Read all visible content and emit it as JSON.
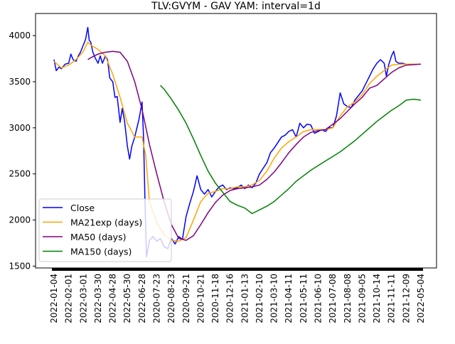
{
  "chart_data": {
    "type": "line",
    "title": "TLV:GVYM - GAV YAM: interval=1d",
    "xlabel": "",
    "ylabel": "",
    "ylim": [
      1480,
      4240
    ],
    "yticks": [
      1500,
      2000,
      2500,
      3000,
      3500,
      4000
    ],
    "xtick_labels": [
      "2022-01-04",
      "2022-02-01",
      "2022-03-01",
      "2022-03-30",
      "2022-04-28",
      "2022-05-30",
      "2022-06-28",
      "2020-07-23",
      "2020-08-23",
      "2020-09-21",
      "2020-10-21",
      "2020-11-18",
      "2020-12-16",
      "2021-01-13",
      "2021-02-10",
      "2021-03-10",
      "2021-04-11",
      "2021-05-11",
      "2021-06-10",
      "2021-07-08",
      "2021-08-08",
      "2021-09-05",
      "2021-10-14",
      "2021-11-11",
      "2021-12-09",
      "2022-05-04"
    ],
    "legend": {
      "position": "lower-left"
    },
    "grid": false,
    "series": [
      {
        "name": "Close",
        "color": "#0000ff",
        "points": [
          [
            0,
            3740
          ],
          [
            0.3,
            3620
          ],
          [
            0.7,
            3660
          ],
          [
            1,
            3640
          ],
          [
            1.5,
            3690
          ],
          [
            2,
            3700
          ],
          [
            2.3,
            3800
          ],
          [
            2.6,
            3740
          ],
          [
            3,
            3720
          ],
          [
            3.3,
            3780
          ],
          [
            3.6,
            3820
          ],
          [
            4,
            3900
          ],
          [
            4.3,
            3960
          ],
          [
            4.6,
            4090
          ],
          [
            4.8,
            3950
          ],
          [
            5,
            3930
          ],
          [
            5.3,
            3820
          ],
          [
            5.6,
            3760
          ],
          [
            6,
            3700
          ],
          [
            6.3,
            3780
          ],
          [
            6.6,
            3700
          ],
          [
            7,
            3780
          ],
          [
            7.3,
            3740
          ],
          [
            7.6,
            3540
          ],
          [
            8,
            3500
          ],
          [
            8.3,
            3330
          ],
          [
            8.6,
            3340
          ],
          [
            9,
            3060
          ],
          [
            9.3,
            3210
          ],
          [
            9.6,
            3080
          ],
          [
            10,
            2800
          ],
          [
            10.3,
            2660
          ],
          [
            10.6,
            2800
          ],
          [
            11,
            2900
          ],
          [
            11.3,
            3000
          ],
          [
            11.6,
            3100
          ],
          [
            12,
            3280
          ],
          [
            12.2,
            2900
          ],
          [
            12.4,
            2180
          ],
          [
            12.6,
            1600
          ],
          [
            13,
            1780
          ],
          [
            13.5,
            1820
          ],
          [
            14,
            1770
          ],
          [
            14.5,
            1800
          ],
          [
            15,
            1710
          ],
          [
            15.5,
            1690
          ],
          [
            16,
            1800
          ],
          [
            16.5,
            1740
          ],
          [
            17,
            1820
          ],
          [
            17.5,
            1790
          ],
          [
            18,
            2040
          ],
          [
            18.5,
            2180
          ],
          [
            19,
            2310
          ],
          [
            19.5,
            2480
          ],
          [
            20,
            2330
          ],
          [
            20.5,
            2280
          ],
          [
            21,
            2330
          ],
          [
            21.5,
            2250
          ],
          [
            22,
            2310
          ],
          [
            22.5,
            2360
          ],
          [
            23,
            2380
          ],
          [
            23.5,
            2330
          ],
          [
            24,
            2350
          ],
          [
            24.5,
            2340
          ],
          [
            25,
            2350
          ],
          [
            25.5,
            2380
          ],
          [
            26,
            2340
          ],
          [
            26.5,
            2380
          ],
          [
            27,
            2350
          ],
          [
            27.5,
            2400
          ],
          [
            28,
            2500
          ],
          [
            28.5,
            2560
          ],
          [
            29,
            2620
          ],
          [
            29.5,
            2730
          ],
          [
            30,
            2780
          ],
          [
            30.5,
            2840
          ],
          [
            31,
            2900
          ],
          [
            31.5,
            2920
          ],
          [
            32,
            2960
          ],
          [
            32.5,
            2980
          ],
          [
            33,
            2900
          ],
          [
            33.5,
            3050
          ],
          [
            34,
            3000
          ],
          [
            34.5,
            3040
          ],
          [
            35,
            3030
          ],
          [
            35.5,
            2940
          ],
          [
            36,
            2960
          ],
          [
            36.5,
            2980
          ],
          [
            37,
            2960
          ],
          [
            37.5,
            3000
          ],
          [
            38,
            3000
          ],
          [
            38.5,
            3130
          ],
          [
            39,
            3380
          ],
          [
            39.5,
            3260
          ],
          [
            40,
            3230
          ],
          [
            40.5,
            3220
          ],
          [
            41,
            3300
          ],
          [
            41.5,
            3350
          ],
          [
            42,
            3400
          ],
          [
            42.5,
            3480
          ],
          [
            43,
            3560
          ],
          [
            43.5,
            3640
          ],
          [
            44,
            3700
          ],
          [
            44.5,
            3740
          ],
          [
            45,
            3700
          ],
          [
            45.3,
            3560
          ],
          [
            45.6,
            3680
          ],
          [
            46,
            3780
          ],
          [
            46.3,
            3830
          ],
          [
            46.6,
            3720
          ],
          [
            47,
            3700
          ],
          [
            47.5,
            3700
          ],
          [
            48,
            3690
          ],
          [
            49,
            3690
          ],
          [
            50,
            3690
          ]
        ]
      },
      {
        "name": "MA21exp (days)",
        "color": "#ffa500",
        "points": [
          [
            0,
            3720
          ],
          [
            1,
            3650
          ],
          [
            2,
            3680
          ],
          [
            3,
            3740
          ],
          [
            4,
            3830
          ],
          [
            4.6,
            3930
          ],
          [
            5,
            3900
          ],
          [
            6,
            3850
          ],
          [
            7,
            3780
          ],
          [
            8,
            3580
          ],
          [
            9,
            3330
          ],
          [
            10,
            3050
          ],
          [
            11,
            2900
          ],
          [
            12,
            2900
          ],
          [
            12.5,
            2700
          ],
          [
            13,
            2200
          ],
          [
            14,
            1970
          ],
          [
            15,
            1840
          ],
          [
            16,
            1780
          ],
          [
            17,
            1770
          ],
          [
            18,
            1810
          ],
          [
            19,
            2000
          ],
          [
            20,
            2200
          ],
          [
            21,
            2290
          ],
          [
            22,
            2310
          ],
          [
            23,
            2340
          ],
          [
            24,
            2340
          ],
          [
            25,
            2360
          ],
          [
            26,
            2360
          ],
          [
            27,
            2380
          ],
          [
            28,
            2430
          ],
          [
            29,
            2530
          ],
          [
            30,
            2670
          ],
          [
            31,
            2780
          ],
          [
            32,
            2850
          ],
          [
            33,
            2900
          ],
          [
            34,
            2960
          ],
          [
            35,
            2980
          ],
          [
            36,
            2980
          ],
          [
            37,
            2980
          ],
          [
            38,
            3000
          ],
          [
            39,
            3130
          ],
          [
            40,
            3230
          ],
          [
            41,
            3280
          ],
          [
            42,
            3360
          ],
          [
            43,
            3480
          ],
          [
            44,
            3560
          ],
          [
            45,
            3620
          ],
          [
            46,
            3680
          ],
          [
            47,
            3690
          ],
          [
            48,
            3690
          ],
          [
            49,
            3690
          ],
          [
            50,
            3690
          ]
        ]
      },
      {
        "name": "MA50 (days)",
        "color": "#800080",
        "points": [
          [
            4.6,
            3740
          ],
          [
            5,
            3760
          ],
          [
            6,
            3800
          ],
          [
            7,
            3820
          ],
          [
            8,
            3830
          ],
          [
            9,
            3820
          ],
          [
            10,
            3720
          ],
          [
            11,
            3500
          ],
          [
            12,
            3200
          ],
          [
            13,
            2820
          ],
          [
            14,
            2500
          ],
          [
            15,
            2200
          ],
          [
            16,
            1950
          ],
          [
            17,
            1800
          ],
          [
            18,
            1780
          ],
          [
            19,
            1830
          ],
          [
            20,
            1950
          ],
          [
            21,
            2080
          ],
          [
            22,
            2190
          ],
          [
            23,
            2270
          ],
          [
            24,
            2320
          ],
          [
            25,
            2340
          ],
          [
            26,
            2350
          ],
          [
            27,
            2360
          ],
          [
            28,
            2380
          ],
          [
            29,
            2440
          ],
          [
            30,
            2520
          ],
          [
            31,
            2620
          ],
          [
            32,
            2730
          ],
          [
            33,
            2820
          ],
          [
            34,
            2900
          ],
          [
            35,
            2950
          ],
          [
            36,
            2970
          ],
          [
            37,
            2980
          ],
          [
            38,
            3040
          ],
          [
            39,
            3100
          ],
          [
            40,
            3180
          ],
          [
            41,
            3260
          ],
          [
            42,
            3330
          ],
          [
            43,
            3430
          ],
          [
            44,
            3460
          ],
          [
            45,
            3530
          ],
          [
            46,
            3600
          ],
          [
            47,
            3650
          ],
          [
            48,
            3680
          ],
          [
            50,
            3690
          ]
        ]
      },
      {
        "name": "MA150 (days)",
        "color": "#008000",
        "points": [
          [
            14.5,
            3460
          ],
          [
            15,
            3420
          ],
          [
            16,
            3310
          ],
          [
            17,
            3190
          ],
          [
            18,
            3050
          ],
          [
            19,
            2880
          ],
          [
            20,
            2700
          ],
          [
            21,
            2530
          ],
          [
            22,
            2400
          ],
          [
            23,
            2300
          ],
          [
            24,
            2200
          ],
          [
            25,
            2160
          ],
          [
            26,
            2130
          ],
          [
            27,
            2070
          ],
          [
            28,
            2110
          ],
          [
            29,
            2150
          ],
          [
            30,
            2200
          ],
          [
            31,
            2270
          ],
          [
            32,
            2340
          ],
          [
            33,
            2420
          ],
          [
            34,
            2480
          ],
          [
            35,
            2540
          ],
          [
            36,
            2590
          ],
          [
            37,
            2640
          ],
          [
            38,
            2690
          ],
          [
            39,
            2740
          ],
          [
            40,
            2800
          ],
          [
            41,
            2860
          ],
          [
            42,
            2930
          ],
          [
            43,
            3000
          ],
          [
            44,
            3070
          ],
          [
            45,
            3130
          ],
          [
            46,
            3190
          ],
          [
            47,
            3240
          ],
          [
            48,
            3300
          ],
          [
            49,
            3310
          ],
          [
            50,
            3300
          ]
        ]
      }
    ]
  }
}
